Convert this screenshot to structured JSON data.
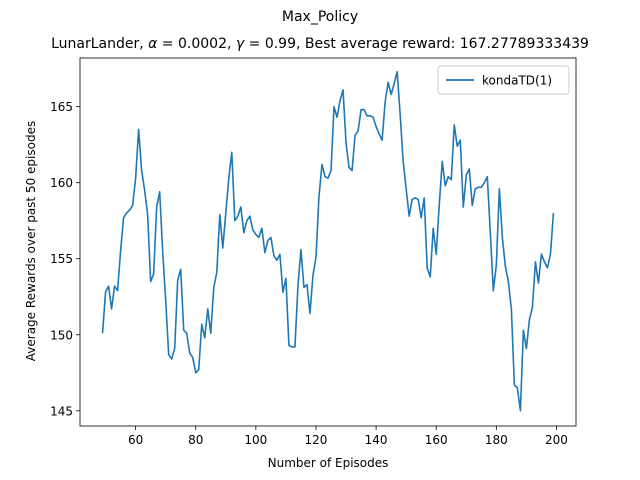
{
  "chart_data": {
    "type": "line",
    "suptitle": "Max_Policy",
    "title": {
      "prefix": "LunarLander, ",
      "alpha_symbol": "α",
      "alpha_text": " = 0.0002, ",
      "gamma_symbol": "γ",
      "gamma_text": " = 0.99,  Best average reward: 167.27789333439"
    },
    "xlabel": "Number of Episodes",
    "ylabel": "Average Rewards over past 50 episodes",
    "xlim": [
      41.5,
      206.5
    ],
    "ylim": [
      144.0,
      168.2
    ],
    "xticks": [
      60,
      80,
      100,
      120,
      140,
      160,
      180,
      200
    ],
    "xtick_labels": [
      "60",
      "80",
      "100",
      "120",
      "140",
      "160",
      "180",
      "200"
    ],
    "yticks": [
      145,
      150,
      155,
      160,
      165
    ],
    "ytick_labels": [
      "145",
      "150",
      "155",
      "160",
      "165"
    ],
    "legend": {
      "position": "top-right",
      "entries": [
        "kondaTD(1)"
      ]
    },
    "series": [
      {
        "name": "kondaTD(1)",
        "color": "#1f77b4",
        "x_start": 49,
        "values": [
          150.1,
          152.8,
          153.2,
          151.7,
          153.2,
          152.9,
          155.5,
          157.7,
          158.0,
          158.2,
          158.5,
          160.3,
          163.5,
          160.8,
          159.5,
          157.9,
          153.5,
          154.0,
          158.4,
          159.4,
          155.5,
          152.3,
          148.7,
          148.4,
          149.1,
          153.6,
          154.3,
          150.3,
          150.1,
          148.8,
          148.5,
          147.5,
          147.7,
          150.7,
          149.8,
          151.7,
          150.1,
          153.1,
          154.1,
          157.9,
          155.7,
          158.0,
          160.3,
          162.0,
          157.5,
          157.8,
          158.4,
          156.7,
          157.5,
          157.8,
          156.9,
          156.6,
          156.4,
          157.0,
          155.4,
          156.2,
          156.4,
          155.2,
          154.9,
          155.3,
          152.8,
          153.7,
          149.3,
          149.2,
          149.2,
          153.2,
          155.6,
          153.1,
          153.3,
          151.4,
          153.9,
          155.1,
          159.1,
          161.2,
          160.4,
          160.3,
          160.8,
          165.0,
          164.3,
          165.4,
          166.1,
          162.6,
          161.0,
          160.8,
          163.1,
          163.4,
          164.8,
          164.8,
          164.4,
          164.4,
          164.3,
          163.7,
          163.2,
          162.8,
          165.3,
          166.6,
          165.8,
          166.5,
          167.3,
          164.5,
          161.4,
          159.6,
          157.8,
          158.9,
          159.0,
          158.9,
          157.7,
          159.0,
          154.4,
          153.8,
          157.0,
          155.3,
          158.5,
          161.4,
          159.8,
          160.4,
          160.2,
          163.8,
          162.4,
          162.8,
          158.4,
          160.5,
          160.9,
          158.5,
          159.6,
          159.7,
          159.7,
          160.0,
          160.4,
          156.7,
          152.9,
          154.6,
          159.6,
          156.4,
          154.5,
          153.5,
          151.7,
          146.7,
          146.5,
          145.0,
          150.3,
          149.1,
          151.0,
          151.8,
          154.8,
          153.4,
          155.3,
          154.8,
          154.4,
          155.3,
          158.0
        ]
      }
    ]
  }
}
